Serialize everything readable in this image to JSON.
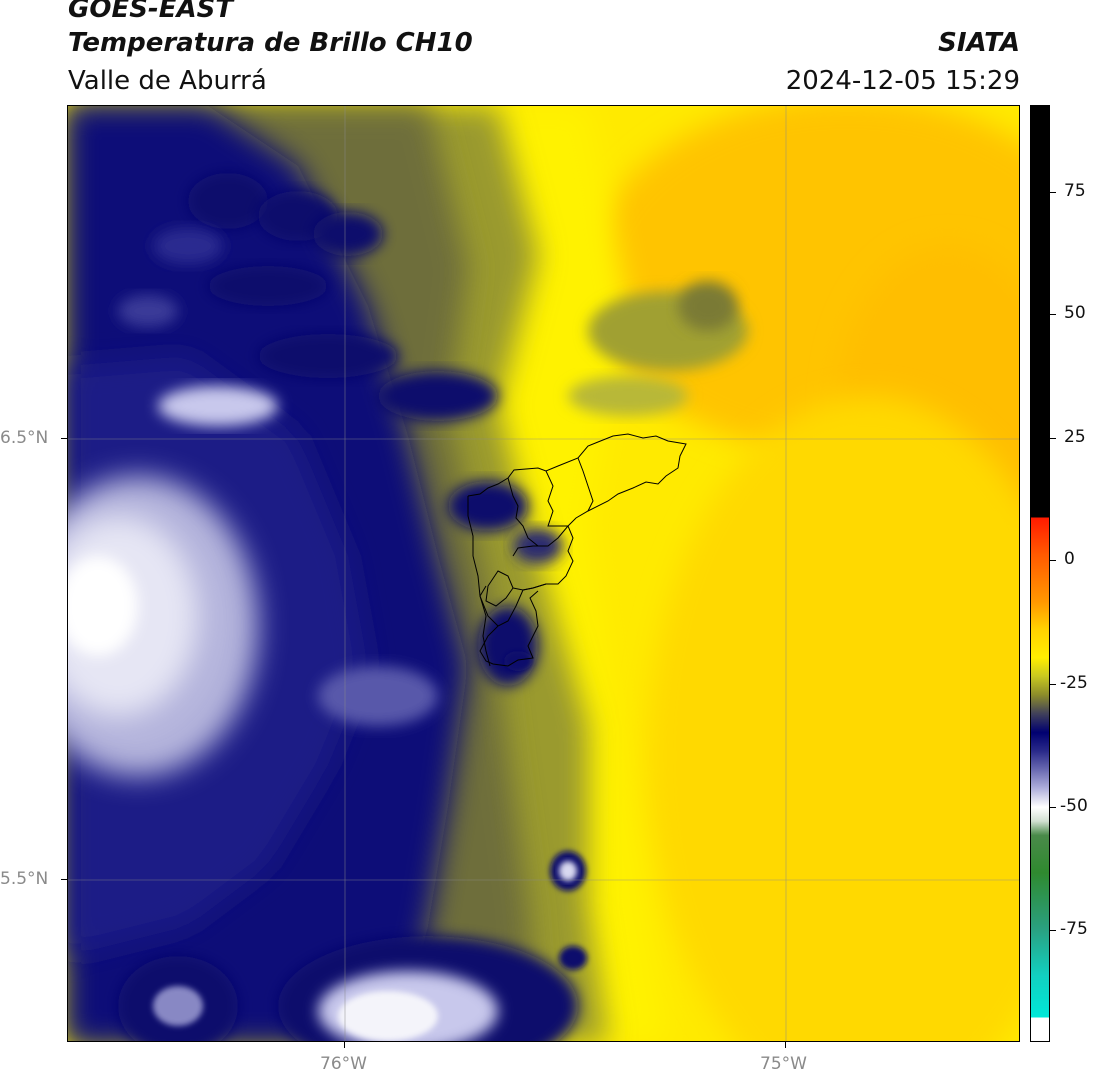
{
  "header": {
    "title_line1": "GOES-EAST",
    "title_line2": "Temperatura de Brillo CH10",
    "org": "SIATA",
    "region": "Valle de Aburrá",
    "datetime": "2024-12-05 15:29"
  },
  "map": {
    "lat_labels": [
      "6.5°N",
      "5.5°N"
    ],
    "lon_labels": [
      "76°W",
      "75°W"
    ]
  },
  "colorbar": {
    "tick_labels": [
      "75",
      "50",
      "25",
      "0",
      "-25",
      "-50",
      "-75"
    ],
    "colors": {
      "black": "#000000",
      "red": "#ff1a00",
      "orange": "#ff8c00",
      "yellow": "#ffee00",
      "olive": "#8c8c2a",
      "navy": "#000070",
      "lavender": "#c8c8ec",
      "white": "#ffffff",
      "green": "#2f8a2f",
      "cyan": "#00e8d8"
    }
  }
}
